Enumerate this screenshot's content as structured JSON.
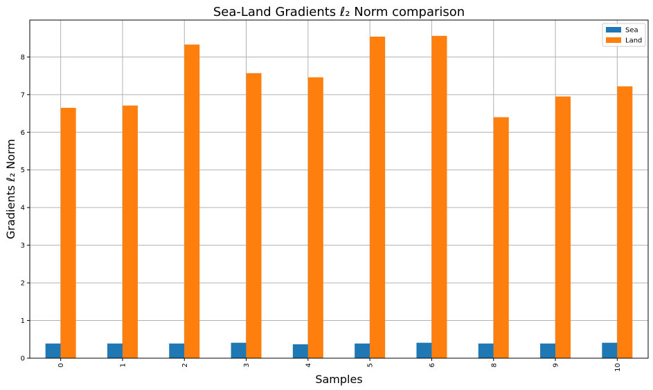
{
  "chart_data": {
    "type": "bar",
    "title": "Sea-Land Gradients ℓ₂ Norm comparison",
    "xlabel": "Samples",
    "ylabel": "Gradients ℓ₂ Norm",
    "categories": [
      "0",
      "1",
      "2",
      "3",
      "4",
      "5",
      "6",
      "8",
      "9",
      "10"
    ],
    "series": [
      {
        "name": "Sea",
        "color": "#1f77b4",
        "values": [
          0.39,
          0.39,
          0.39,
          0.41,
          0.37,
          0.39,
          0.41,
          0.39,
          0.39,
          0.41
        ]
      },
      {
        "name": "Land",
        "color": "#ff7f0e",
        "values": [
          6.65,
          6.71,
          8.33,
          7.57,
          7.46,
          8.54,
          8.56,
          6.4,
          6.95,
          7.22
        ]
      }
    ],
    "ylim": [
      0,
      8.98
    ],
    "yticks": [
      "0",
      "1",
      "2",
      "3",
      "4",
      "5",
      "6",
      "7",
      "8"
    ],
    "grid": true,
    "legend_position": "upper right"
  }
}
